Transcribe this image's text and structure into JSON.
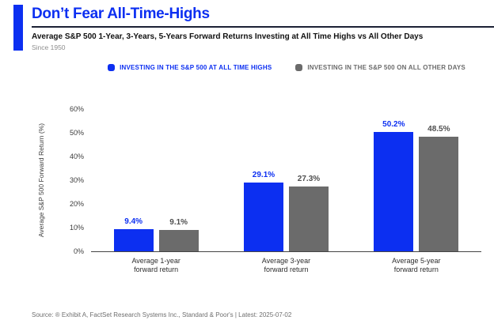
{
  "colors": {
    "accent_blue": "#0c2ff1",
    "bar_gray": "#6b6b6b",
    "title_rule": "#1b2134",
    "gray_value_label": "#4f4f4f"
  },
  "header": {
    "title": "Don’t Fear All-Time-Highs",
    "subtitle": "Average S&P 500 1-Year, 3-Years, 5-Years Forward Returns Investing at All Time Highs vs All Other Days",
    "period_note": "Since 1950"
  },
  "legend": [
    {
      "label": "INVESTING IN THE S&P 500 AT ALL TIME HIGHS",
      "color": "#0c2ff1",
      "text_color": "#0c2ff1"
    },
    {
      "label": "INVESTING IN THE S&P 500 ON ALL OTHER DAYS",
      "color": "#6b6b6b",
      "text_color": "#6b6b6b"
    }
  ],
  "chart_data": {
    "type": "bar",
    "title": "Don’t Fear All-Time-Highs",
    "subtitle": "Average S&P 500 1-Year, 3-Years, 5-Years Forward Returns Investing at All Time Highs vs All Other Days",
    "categories": [
      "Average 1-year\nforward return",
      "Average 3-year\nforward return",
      "Average 5-year\nforward return"
    ],
    "series": [
      {
        "name": "Investing in the S&P 500 at All Time Highs",
        "color": "#0c2ff1",
        "label_color": "#0c2ff1",
        "values": [
          9.4,
          29.1,
          50.2
        ]
      },
      {
        "name": "Investing in the S&P 500 on All Other Days",
        "color": "#6b6b6b",
        "label_color": "#4f4f4f",
        "values": [
          9.1,
          27.3,
          48.5
        ]
      }
    ],
    "value_labels": [
      [
        "9.4%",
        "29.1%",
        "50.2%"
      ],
      [
        "9.1%",
        "27.3%",
        "48.5%"
      ]
    ],
    "ylabel": "Average S&P 500 Forward Return (%)",
    "xlabel": "",
    "ylim": [
      0,
      60
    ],
    "yticks": [
      "60%",
      "50%",
      "40%",
      "30%",
      "20%",
      "10%",
      "0%"
    ],
    "grid": false,
    "legend_position": "top"
  },
  "footer": {
    "source": "Source: ® Exhibit A, FactSet Research Systems Inc., Standard & Poor's | Latest: 2025-07-02"
  }
}
